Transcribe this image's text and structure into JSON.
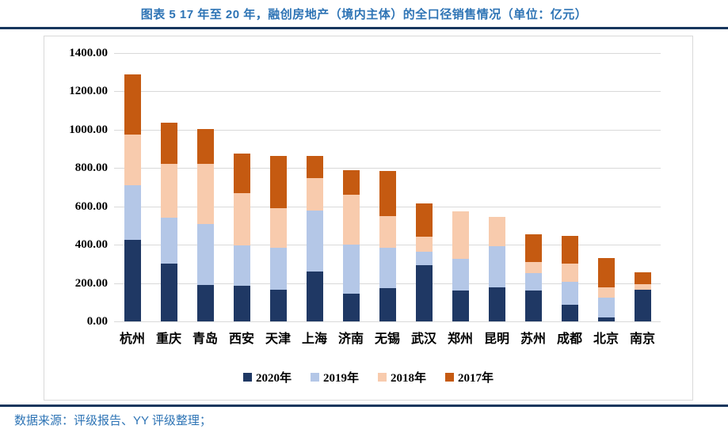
{
  "header": {
    "title": "图表 5 17 年至 20 年，融创房地产（境内主体）的全口径销售情况（单位：亿元）"
  },
  "footer": {
    "source": "数据来源：评级报告、YY 评级整理；"
  },
  "colors": {
    "title_blue": "#2E74B5",
    "rule_navy": "#17365D",
    "frame_border": "#D9D9D9",
    "gridline": "#D9D9D9",
    "series_2020": "#1F3864",
    "series_2019": "#B4C7E7",
    "series_2018": "#F8CBAD",
    "series_2017": "#C55A11"
  },
  "chart_data": {
    "type": "bar",
    "stacked": true,
    "title": "17 年至 20 年，融创房地产（境内主体）的全口径销售情况",
    "unit": "亿元",
    "xlabel": "",
    "ylabel": "",
    "ylim": [
      0,
      1400
    ],
    "ytick_step": 200,
    "ytick_labels": [
      "0.00",
      "200.00",
      "400.00",
      "600.00",
      "800.00",
      "1000.00",
      "1200.00",
      "1400.00"
    ],
    "grid": true,
    "legend_position": "bottom",
    "categories": [
      "杭州",
      "重庆",
      "青岛",
      "西安",
      "天津",
      "上海",
      "济南",
      "无锡",
      "武汉",
      "郑州",
      "昆明",
      "苏州",
      "成都",
      "北京",
      "南京"
    ],
    "series": [
      {
        "name": "2020年",
        "color": "#1F3864",
        "values": [
          425,
          300,
          188,
          185,
          165,
          262,
          146,
          175,
          294,
          160,
          177,
          161,
          86,
          19,
          165
        ]
      },
      {
        "name": "2019年",
        "color": "#B4C7E7",
        "values": [
          285,
          240,
          322,
          210,
          220,
          315,
          254,
          210,
          69,
          165,
          216,
          93,
          121,
          104,
          0
        ]
      },
      {
        "name": "2018年",
        "color": "#F8CBAD",
        "values": [
          265,
          280,
          310,
          275,
          205,
          170,
          260,
          165,
          80,
          250,
          152,
          56,
          95,
          55,
          31
        ]
      },
      {
        "name": "2017年",
        "color": "#C55A11",
        "values": [
          315,
          215,
          185,
          205,
          275,
          115,
          130,
          235,
          172,
          0,
          0,
          145,
          143,
          152,
          59
        ]
      }
    ]
  }
}
